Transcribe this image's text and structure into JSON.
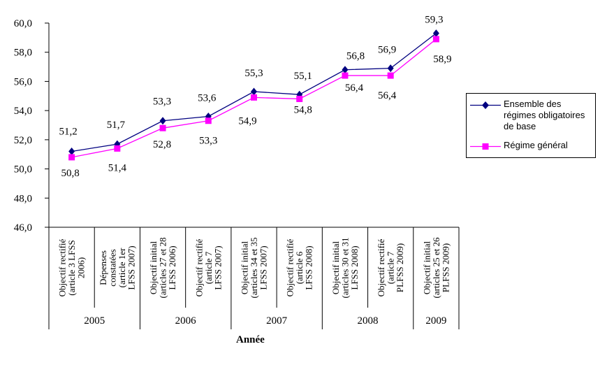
{
  "chart_data": {
    "type": "line",
    "title": "",
    "xlabel": "Année",
    "ylabel": "",
    "ylim": [
      46.0,
      60.0
    ],
    "ytick_step": 2.0,
    "yticks": [
      "46,0",
      "48,0",
      "50,0",
      "52,0",
      "54,0",
      "56,0",
      "58,0",
      "60,0"
    ],
    "grid": false,
    "legend_position": "right",
    "categories": [
      {
        "year": "2005",
        "label": "Objectif rectifié (article 3 LFSS 2006)",
        "lines": [
          "Objectif rectifié",
          "(article 3 LFSS",
          "2006)"
        ]
      },
      {
        "year": "2005",
        "label": "Dépenses constatées (article 1er LFSS 2007)",
        "lines": [
          "Dépenses",
          "constatées",
          "(article 1er",
          "LFSS 2007)"
        ]
      },
      {
        "year": "2006",
        "label": "Objectif initial (articles 27 et 28 LFSS 2006)",
        "lines": [
          "Objectif initial",
          "(articles 27 et 28",
          "LFSS 2006)"
        ]
      },
      {
        "year": "2006",
        "label": "Objectif rectifié (article 7 LFSS 2007)",
        "lines": [
          "Objectif rectifié",
          "(article 7",
          "LFSS 2007)"
        ]
      },
      {
        "year": "2007",
        "label": "Objectif initial (articles 34 et 35 LFSS 2007)",
        "lines": [
          "Objectif initial",
          "(articles 34 et 35",
          "LFSS 2007)"
        ]
      },
      {
        "year": "2007",
        "label": "Objectif rectifié (article 6 LFSS 2008)",
        "lines": [
          "Objectif rectifié",
          "(article 6",
          "LFSS 2008)"
        ]
      },
      {
        "year": "2008",
        "label": "Objectif initial (articles 30 et 31 LFSS 2008)",
        "lines": [
          "Objectif initial",
          "(articles 30 et 31",
          "LFSS 2008)"
        ]
      },
      {
        "year": "2008",
        "label": "Objectif rectifié (article 7 PLFSS 2009)",
        "lines": [
          "Objectif rectifié",
          "(article 7",
          "PLFSS 2009)"
        ]
      },
      {
        "year": "2009",
        "label": "Objectif initial (articles 25 et 26 PLFSS 2009)",
        "lines": [
          "Objectif initial",
          "(articles 25 et 26",
          "PLFSS 2009)"
        ]
      }
    ],
    "year_groups": [
      {
        "year": "2005",
        "count": 2
      },
      {
        "year": "2006",
        "count": 2
      },
      {
        "year": "2007",
        "count": 2
      },
      {
        "year": "2008",
        "count": 2
      },
      {
        "year": "2009",
        "count": 1
      }
    ],
    "series": [
      {
        "name": "Ensemble des régimes obligatoires de base",
        "color": "#000080",
        "marker": "diamond",
        "label_position": "above",
        "values": [
          51.2,
          51.7,
          53.3,
          53.6,
          55.3,
          55.1,
          56.8,
          56.9,
          59.3
        ],
        "labels": [
          "51,2",
          "51,7",
          "53,3",
          "53,6",
          "55,3",
          "55,1",
          "56,8",
          "56,9",
          "59,3"
        ]
      },
      {
        "name": "Régime général",
        "color": "#FF00FF",
        "marker": "square",
        "label_position": "below",
        "values": [
          50.8,
          51.4,
          52.8,
          53.3,
          54.9,
          54.8,
          56.4,
          56.4,
          58.9
        ],
        "labels": [
          "50,8",
          "51,4",
          "52,8",
          "53,3",
          "54,9",
          "54,8",
          "56,4",
          "56,4",
          "58,9"
        ]
      }
    ]
  }
}
